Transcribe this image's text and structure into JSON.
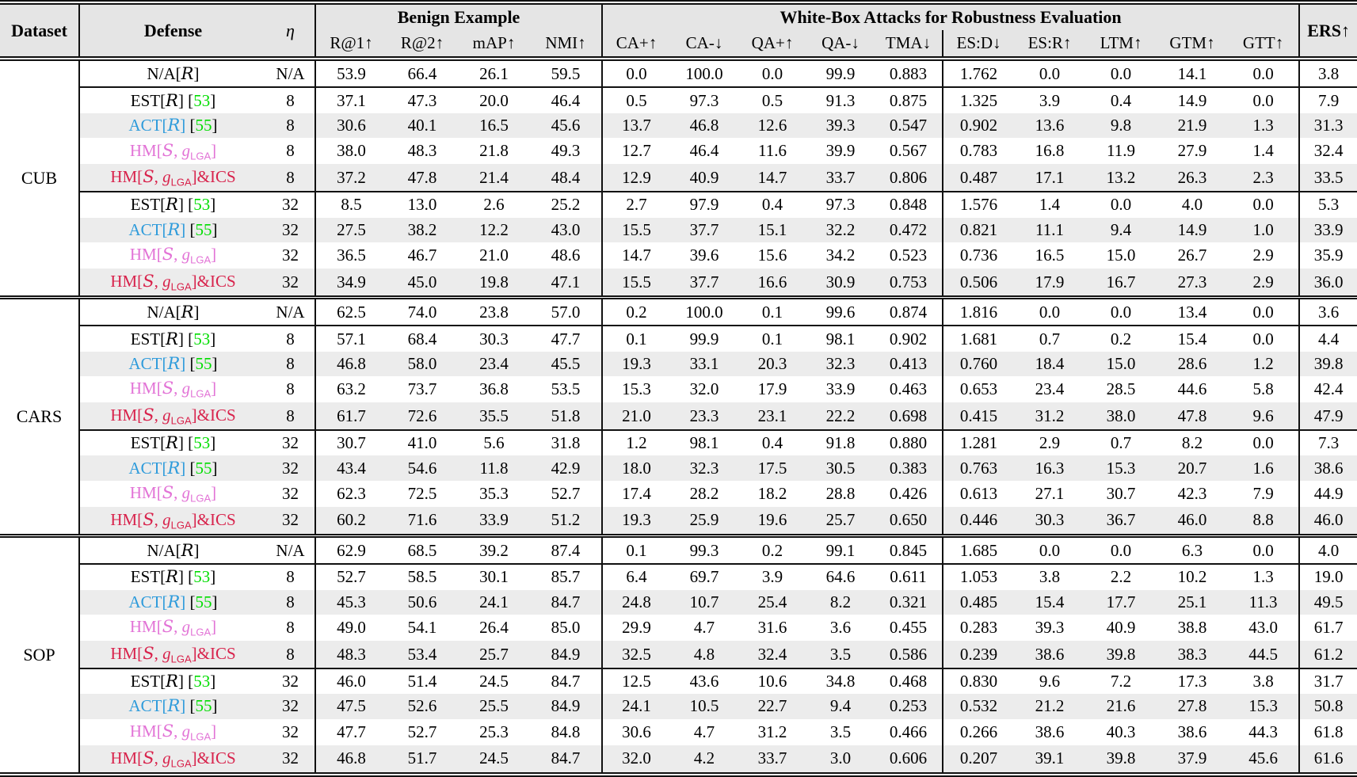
{
  "table": {
    "header": {
      "dataset": "Dataset",
      "defense": "Defense",
      "eta": "η",
      "benign_group": "Benign Example",
      "whitebox_group": "White-Box Attacks for Robustness Evaluation",
      "ers": "ERS↑",
      "benign_cols": [
        "R@1↑",
        "R@2↑",
        "mAP↑",
        "NMI↑"
      ],
      "whitebox_cols": [
        "CA+↑",
        "CA-↓",
        "QA+↑",
        "QA-↓",
        "TMA↓",
        "ES:D↓",
        "ES:R↑",
        "LTM↑",
        "GTM↑",
        "GTT↑"
      ]
    },
    "metric_names": [
      "r-at-1",
      "r-at-2",
      "map",
      "nmi",
      "ca-plus",
      "ca-minus",
      "qa-plus",
      "qa-minus",
      "tma",
      "es-d",
      "es-r",
      "ltm",
      "gtm",
      "gtt",
      "ers"
    ],
    "citation_color": "#00DD00",
    "defense_labels": {
      "na": {
        "color": "#000000",
        "parts": [
          [
            "N/A[",
            "n"
          ],
          [
            "R",
            "scr"
          ],
          [
            "]",
            "n"
          ]
        ]
      },
      "est": {
        "color": "#000000",
        "parts": [
          [
            "EST[",
            "n"
          ],
          [
            "R",
            "scr"
          ],
          [
            "] [",
            "n"
          ],
          [
            "53",
            "cite"
          ],
          [
            "]",
            "n"
          ]
        ]
      },
      "act": {
        "color": "#2E9BDB",
        "parts": [
          [
            "ACT[",
            "n"
          ],
          [
            "R",
            "scr"
          ],
          [
            "]",
            "n"
          ],
          [
            " [",
            "black"
          ],
          [
            "55",
            "cite"
          ],
          [
            "]",
            "black"
          ]
        ]
      },
      "hm": {
        "color": "#E273D6",
        "parts": [
          [
            "HM[",
            "n"
          ],
          [
            "S",
            "scr"
          ],
          [
            ", ",
            "n"
          ],
          [
            "g",
            "ital"
          ],
          [
            "LGA",
            "sub"
          ],
          [
            "]",
            "n"
          ]
        ]
      },
      "hmics": {
        "color": "#D8234C",
        "parts": [
          [
            "HM[",
            "n"
          ],
          [
            "S",
            "scr"
          ],
          [
            ", ",
            "n"
          ],
          [
            "g",
            "ital"
          ],
          [
            "LGA",
            "sub"
          ],
          [
            "]&ICS",
            "n"
          ]
        ]
      }
    },
    "sections": [
      {
        "dataset": "CUB",
        "rows": [
          {
            "defense": "na",
            "eta": "N/A",
            "shaded": false,
            "hline": true,
            "values": [
              "53.9",
              "66.4",
              "26.1",
              "59.5",
              "0.0",
              "100.0",
              "0.0",
              "99.9",
              "0.883",
              "1.762",
              "0.0",
              "0.0",
              "14.1",
              "0.0",
              "3.8"
            ]
          },
          {
            "defense": "est",
            "eta": "8",
            "shaded": false,
            "hline": false,
            "values": [
              "37.1",
              "47.3",
              "20.0",
              "46.4",
              "0.5",
              "97.3",
              "0.5",
              "91.3",
              "0.875",
              "1.325",
              "3.9",
              "0.4",
              "14.9",
              "0.0",
              "7.9"
            ]
          },
          {
            "defense": "act",
            "eta": "8",
            "shaded": true,
            "hline": false,
            "values": [
              "30.6",
              "40.1",
              "16.5",
              "45.6",
              "13.7",
              "46.8",
              "12.6",
              "39.3",
              "0.547",
              "0.902",
              "13.6",
              "9.8",
              "21.9",
              "1.3",
              "31.3"
            ]
          },
          {
            "defense": "hm",
            "eta": "8",
            "shaded": false,
            "hline": false,
            "values": [
              "38.0",
              "48.3",
              "21.8",
              "49.3",
              "12.7",
              "46.4",
              "11.6",
              "39.9",
              "0.567",
              "0.783",
              "16.8",
              "11.9",
              "27.9",
              "1.4",
              "32.4"
            ]
          },
          {
            "defense": "hmics",
            "eta": "8",
            "shaded": true,
            "hline": true,
            "values": [
              "37.2",
              "47.8",
              "21.4",
              "48.4",
              "12.9",
              "40.9",
              "14.7",
              "33.7",
              "0.806",
              "0.487",
              "17.1",
              "13.2",
              "26.3",
              "2.3",
              "33.5"
            ]
          },
          {
            "defense": "est",
            "eta": "32",
            "shaded": false,
            "hline": false,
            "values": [
              "8.5",
              "13.0",
              "2.6",
              "25.2",
              "2.7",
              "97.9",
              "0.4",
              "97.3",
              "0.848",
              "1.576",
              "1.4",
              "0.0",
              "4.0",
              "0.0",
              "5.3"
            ]
          },
          {
            "defense": "act",
            "eta": "32",
            "shaded": true,
            "hline": false,
            "values": [
              "27.5",
              "38.2",
              "12.2",
              "43.0",
              "15.5",
              "37.7",
              "15.1",
              "32.2",
              "0.472",
              "0.821",
              "11.1",
              "9.4",
              "14.9",
              "1.0",
              "33.9"
            ]
          },
          {
            "defense": "hm",
            "eta": "32",
            "shaded": false,
            "hline": false,
            "values": [
              "36.5",
              "46.7",
              "21.0",
              "48.6",
              "14.7",
              "39.6",
              "15.6",
              "34.2",
              "0.523",
              "0.736",
              "16.5",
              "15.0",
              "26.7",
              "2.9",
              "35.9"
            ]
          },
          {
            "defense": "hmics",
            "eta": "32",
            "shaded": true,
            "hline": false,
            "values": [
              "34.9",
              "45.0",
              "19.8",
              "47.1",
              "15.5",
              "37.7",
              "16.6",
              "30.9",
              "0.753",
              "0.506",
              "17.9",
              "16.7",
              "27.3",
              "2.9",
              "36.0"
            ]
          }
        ]
      },
      {
        "dataset": "CARS",
        "rows": [
          {
            "defense": "na",
            "eta": "N/A",
            "shaded": false,
            "hline": true,
            "values": [
              "62.5",
              "74.0",
              "23.8",
              "57.0",
              "0.2",
              "100.0",
              "0.1",
              "99.6",
              "0.874",
              "1.816",
              "0.0",
              "0.0",
              "13.4",
              "0.0",
              "3.6"
            ]
          },
          {
            "defense": "est",
            "eta": "8",
            "shaded": false,
            "hline": false,
            "values": [
              "57.1",
              "68.4",
              "30.3",
              "47.7",
              "0.1",
              "99.9",
              "0.1",
              "98.1",
              "0.902",
              "1.681",
              "0.7",
              "0.2",
              "15.4",
              "0.0",
              "4.4"
            ]
          },
          {
            "defense": "act",
            "eta": "8",
            "shaded": true,
            "hline": false,
            "values": [
              "46.8",
              "58.0",
              "23.4",
              "45.5",
              "19.3",
              "33.1",
              "20.3",
              "32.3",
              "0.413",
              "0.760",
              "18.4",
              "15.0",
              "28.6",
              "1.2",
              "39.8"
            ]
          },
          {
            "defense": "hm",
            "eta": "8",
            "shaded": false,
            "hline": false,
            "values": [
              "63.2",
              "73.7",
              "36.8",
              "53.5",
              "15.3",
              "32.0",
              "17.9",
              "33.9",
              "0.463",
              "0.653",
              "23.4",
              "28.5",
              "44.6",
              "5.8",
              "42.4"
            ]
          },
          {
            "defense": "hmics",
            "eta": "8",
            "shaded": true,
            "hline": true,
            "values": [
              "61.7",
              "72.6",
              "35.5",
              "51.8",
              "21.0",
              "23.3",
              "23.1",
              "22.2",
              "0.698",
              "0.415",
              "31.2",
              "38.0",
              "47.8",
              "9.6",
              "47.9"
            ]
          },
          {
            "defense": "est",
            "eta": "32",
            "shaded": false,
            "hline": false,
            "values": [
              "30.7",
              "41.0",
              "5.6",
              "31.8",
              "1.2",
              "98.1",
              "0.4",
              "91.8",
              "0.880",
              "1.281",
              "2.9",
              "0.7",
              "8.2",
              "0.0",
              "7.3"
            ]
          },
          {
            "defense": "act",
            "eta": "32",
            "shaded": true,
            "hline": false,
            "values": [
              "43.4",
              "54.6",
              "11.8",
              "42.9",
              "18.0",
              "32.3",
              "17.5",
              "30.5",
              "0.383",
              "0.763",
              "16.3",
              "15.3",
              "20.7",
              "1.6",
              "38.6"
            ]
          },
          {
            "defense": "hm",
            "eta": "32",
            "shaded": false,
            "hline": false,
            "values": [
              "62.3",
              "72.5",
              "35.3",
              "52.7",
              "17.4",
              "28.2",
              "18.2",
              "28.8",
              "0.426",
              "0.613",
              "27.1",
              "30.7",
              "42.3",
              "7.9",
              "44.9"
            ]
          },
          {
            "defense": "hmics",
            "eta": "32",
            "shaded": true,
            "hline": false,
            "values": [
              "60.2",
              "71.6",
              "33.9",
              "51.2",
              "19.3",
              "25.9",
              "19.6",
              "25.7",
              "0.650",
              "0.446",
              "30.3",
              "36.7",
              "46.0",
              "8.8",
              "46.0"
            ]
          }
        ]
      },
      {
        "dataset": "SOP",
        "rows": [
          {
            "defense": "na",
            "eta": "N/A",
            "shaded": false,
            "hline": true,
            "values": [
              "62.9",
              "68.5",
              "39.2",
              "87.4",
              "0.1",
              "99.3",
              "0.2",
              "99.1",
              "0.845",
              "1.685",
              "0.0",
              "0.0",
              "6.3",
              "0.0",
              "4.0"
            ]
          },
          {
            "defense": "est",
            "eta": "8",
            "shaded": false,
            "hline": false,
            "values": [
              "52.7",
              "58.5",
              "30.1",
              "85.7",
              "6.4",
              "69.7",
              "3.9",
              "64.6",
              "0.611",
              "1.053",
              "3.8",
              "2.2",
              "10.2",
              "1.3",
              "19.0"
            ]
          },
          {
            "defense": "act",
            "eta": "8",
            "shaded": true,
            "hline": false,
            "values": [
              "45.3",
              "50.6",
              "24.1",
              "84.7",
              "24.8",
              "10.7",
              "25.4",
              "8.2",
              "0.321",
              "0.485",
              "15.4",
              "17.7",
              "25.1",
              "11.3",
              "49.5"
            ]
          },
          {
            "defense": "hm",
            "eta": "8",
            "shaded": false,
            "hline": false,
            "values": [
              "49.0",
              "54.1",
              "26.4",
              "85.0",
              "29.9",
              "4.7",
              "31.6",
              "3.6",
              "0.455",
              "0.283",
              "39.3",
              "40.9",
              "38.8",
              "43.0",
              "61.7"
            ]
          },
          {
            "defense": "hmics",
            "eta": "8",
            "shaded": true,
            "hline": true,
            "values": [
              "48.3",
              "53.4",
              "25.7",
              "84.9",
              "32.5",
              "4.8",
              "32.4",
              "3.5",
              "0.586",
              "0.239",
              "38.6",
              "39.8",
              "38.3",
              "44.5",
              "61.2"
            ]
          },
          {
            "defense": "est",
            "eta": "32",
            "shaded": false,
            "hline": false,
            "values": [
              "46.0",
              "51.4",
              "24.5",
              "84.7",
              "12.5",
              "43.6",
              "10.6",
              "34.8",
              "0.468",
              "0.830",
              "9.6",
              "7.2",
              "17.3",
              "3.8",
              "31.7"
            ]
          },
          {
            "defense": "act",
            "eta": "32",
            "shaded": true,
            "hline": false,
            "values": [
              "47.5",
              "52.6",
              "25.5",
              "84.9",
              "24.1",
              "10.5",
              "22.7",
              "9.4",
              "0.253",
              "0.532",
              "21.2",
              "21.6",
              "27.8",
              "15.3",
              "50.8"
            ]
          },
          {
            "defense": "hm",
            "eta": "32",
            "shaded": false,
            "hline": false,
            "values": [
              "47.7",
              "52.7",
              "25.3",
              "84.8",
              "30.6",
              "4.7",
              "31.2",
              "3.5",
              "0.466",
              "0.266",
              "38.6",
              "40.3",
              "38.6",
              "44.3",
              "61.8"
            ]
          },
          {
            "defense": "hmics",
            "eta": "32",
            "shaded": true,
            "hline": false,
            "values": [
              "46.8",
              "51.7",
              "24.5",
              "84.7",
              "32.0",
              "4.2",
              "33.7",
              "3.0",
              "0.606",
              "0.207",
              "39.1",
              "39.8",
              "37.9",
              "45.6",
              "61.6"
            ]
          }
        ]
      }
    ]
  }
}
